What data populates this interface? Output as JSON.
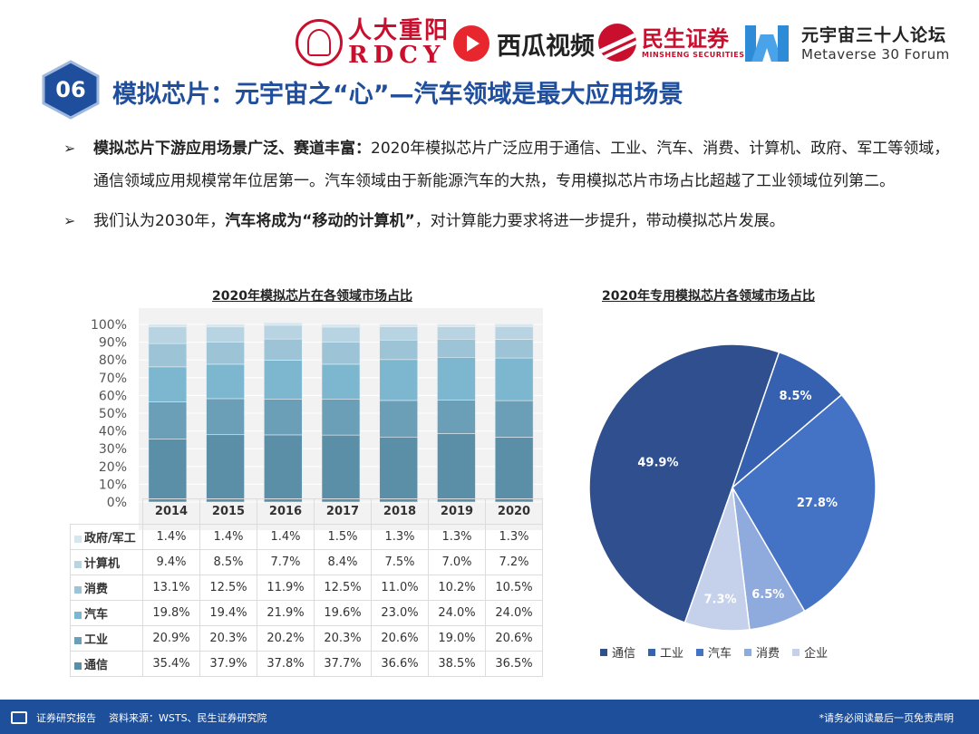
{
  "logos": {
    "rdcy_cn": "人大重阳",
    "rdcy_en": "RDCY",
    "xigua": "西瓜视频",
    "minsheng_cn": "民生证券",
    "minsheng_en": "MINSHENG SECURITIES",
    "metaverse_cn": "元宇宙三十人论坛",
    "metaverse_en": "Metaverse 30 Forum"
  },
  "header": {
    "number": "06",
    "title": "模拟芯片：元宇宙之“心”—汽车领域是最大应用场景"
  },
  "bullets": [
    {
      "bold": "模拟芯片下游应用场景广泛、赛道丰富：",
      "text": "2020年模拟芯片广泛应用于通信、工业、汽车、消费、计算机、政府、军工等领域，通信领域应用规模常年位居第一。汽车领域由于新能源汽车的大热，专用模拟芯片市场占比超越了工业领域位列第二。"
    },
    {
      "prefix": "我们认为2030年，",
      "bold": "汽车将成为“移动的计算机”",
      "text": "，对计算能力要求将进一步提升，带动模拟芯片发展。"
    }
  ],
  "colors": {
    "title_blue": "#1f4e9c",
    "footer_blue": "#1e4f9a",
    "bar_colors": [
      "#5b8fa8",
      "#6b9fb8",
      "#7cb7cf",
      "#9dc3d6",
      "#b8d4e2",
      "#d6e6ef"
    ],
    "pie_colors": [
      "#2f4f8f",
      "#3561b0",
      "#4472c4",
      "#8faadc",
      "#c5d0ea"
    ]
  },
  "chart_data": [
    {
      "type": "bar",
      "stacked": true,
      "title": "2020年模拟芯片在各领域市场占比",
      "categories": [
        "2014",
        "2015",
        "2016",
        "2017",
        "2018",
        "2019",
        "2020"
      ],
      "y_ticks": [
        "0%",
        "10%",
        "20%",
        "30%",
        "40%",
        "50%",
        "60%",
        "70%",
        "80%",
        "90%",
        "100%"
      ],
      "ylim": [
        0,
        100
      ],
      "series": [
        {
          "name": "通信",
          "values": [
            "35.4%",
            "37.9%",
            "37.8%",
            "37.7%",
            "36.6%",
            "38.5%",
            "36.5%"
          ]
        },
        {
          "name": "工业",
          "values": [
            "20.9%",
            "20.3%",
            "20.2%",
            "20.3%",
            "20.6%",
            "19.0%",
            "20.6%"
          ]
        },
        {
          "name": "汽车",
          "values": [
            "19.8%",
            "19.4%",
            "21.9%",
            "19.6%",
            "23.0%",
            "24.0%",
            "24.0%"
          ]
        },
        {
          "name": "消费",
          "values": [
            "13.1%",
            "12.5%",
            "11.9%",
            "12.5%",
            "11.0%",
            "10.2%",
            "10.5%"
          ]
        },
        {
          "name": "计算机",
          "values": [
            "9.4%",
            "8.5%",
            "7.7%",
            "8.4%",
            "7.5%",
            "7.0%",
            "7.2%"
          ]
        },
        {
          "name": "政府/军工",
          "values": [
            "1.4%",
            "1.4%",
            "1.4%",
            "1.5%",
            "1.3%",
            "1.3%",
            "1.3%"
          ]
        }
      ],
      "table_row_order": [
        "政府/军工",
        "计算机",
        "消费",
        "汽车",
        "工业",
        "通信"
      ]
    },
    {
      "type": "pie",
      "title": "2020年专用模拟芯片各领域市场占比",
      "slices": [
        {
          "name": "通信",
          "value": 49.9,
          "label": "49.9%"
        },
        {
          "name": "工业",
          "value": 8.5,
          "label": "8.5%"
        },
        {
          "name": "汽车",
          "value": 27.8,
          "label": "27.8%"
        },
        {
          "name": "消费",
          "value": 6.5,
          "label": "6.5%"
        },
        {
          "name": "企业",
          "value": 7.3,
          "label": "7.3%"
        }
      ]
    }
  ],
  "footer": {
    "left_label": "证券研究报告",
    "source": "资料来源：WSTS、民生证券研究院",
    "disclaimer": "*请务必阅读最后一页免责声明"
  }
}
